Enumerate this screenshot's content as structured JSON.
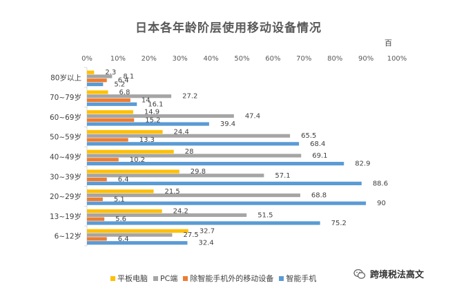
{
  "chart_data": {
    "type": "bar",
    "orientation": "horizontal",
    "title": "日本各年龄阶层使用移动设备情况",
    "unit_label": "百",
    "x_ticks": [
      "0%",
      "10%",
      "20%",
      "30%",
      "40%",
      "50%",
      "60%",
      "70%",
      "80%",
      "90%",
      "100%"
    ],
    "xlim": [
      0,
      100
    ],
    "categories": [
      "80岁以上",
      "70~79岁",
      "60~69岁",
      "50~59岁",
      "40~49岁",
      "30~39岁",
      "20~29岁",
      "13~19岁",
      "6~12岁"
    ],
    "series": [
      {
        "name": "平板电脑",
        "color": "#FFC000",
        "values": [
          2.3,
          6.8,
          14.9,
          24.4,
          28,
          29.8,
          21.5,
          24.2,
          32.7
        ]
      },
      {
        "name": "PC端",
        "color": "#A5A5A5",
        "values": [
          8.1,
          27.2,
          47.4,
          65.5,
          69.1,
          57.1,
          68.8,
          51.5,
          27.5
        ]
      },
      {
        "name": "除智能手机外的移动设备",
        "color": "#ED7D31",
        "values": [
          6.4,
          14,
          15.2,
          13.3,
          10.2,
          6.4,
          5.1,
          5.6,
          6.4
        ]
      },
      {
        "name": "智能手机",
        "color": "#5B9BD5",
        "values": [
          5.2,
          16.1,
          39.4,
          68.4,
          82.9,
          88.6,
          90,
          75.2,
          32.4
        ]
      }
    ],
    "legend_position": "bottom"
  },
  "watermark": {
    "text": "跨境税法高文",
    "icon": "wechat-icon"
  }
}
